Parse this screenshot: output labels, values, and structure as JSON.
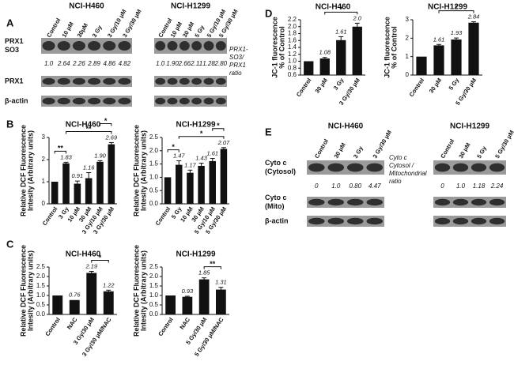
{
  "panel_labels": [
    "A",
    "B",
    "C",
    "D",
    "E"
  ],
  "blot_panels": [
    {
      "rows": [
        [
          "PRX1",
          "SO3"
        ],
        [
          "PRX1"
        ],
        [
          "β-actin"
        ]
      ],
      "ratio_label": [
        "PRX1-",
        "SO3/",
        "PRX1",
        "ratio"
      ],
      "blots": [
        {
          "title": "NCI-H460",
          "lanes": [
            "Control",
            "10 μM",
            "30μM",
            "3 Gy",
            "3 Gy/10 μM",
            "3 Gy/30 μM"
          ],
          "ratios": [
            "1.0",
            "2.64",
            "2.26",
            "2.89",
            "4.86",
            "4.82"
          ]
        },
        {
          "title": "NCI-H1299",
          "lanes": [
            "Control",
            "10 μM",
            "30 μM",
            "5 Gy",
            "5 Gy/10 μM",
            "5 Gy/30 μM"
          ],
          "ratios": [
            "1.0",
            "1.90",
            "2.66",
            "2.11",
            "1.28",
            "2.80"
          ]
        }
      ]
    },
    {
      "rows": [
        [
          "Cyto c",
          "(Cytosol)"
        ],
        [
          "Cyto c",
          "(Mito)"
        ],
        [
          "β-actin"
        ]
      ],
      "ratio_label": [
        "Cyto c",
        "Cytosol /",
        "Mitochondrial",
        "ratio"
      ],
      "blots": [
        {
          "title": "NCI-H460",
          "lanes": [
            "Control",
            "30 μM",
            "3 Gy",
            "3 Gy/30 μM"
          ],
          "ratios": [
            "0",
            "1.0",
            "0.80",
            "4.47"
          ]
        },
        {
          "title": "NCI-H1299",
          "lanes": [
            "Control",
            "30 μM",
            "5 Gy",
            "5 Gy/30 μM"
          ],
          "ratios": [
            "0",
            "1.0",
            "1.18",
            "2.24"
          ]
        }
      ]
    }
  ],
  "chart_data": [
    {
      "type": "bar",
      "title": "NCI-H460",
      "y_label": [
        "Relative DCF Fluorescence",
        "Intesity (Arbitrary units)"
      ],
      "color": "#111111",
      "categories": [
        "Control",
        "3 Gy",
        "10 μM",
        "30 μM",
        "3 Gy/10 μM",
        "3 Gy/30 μM"
      ],
      "values": [
        1,
        1.83,
        0.91,
        1.16,
        1.9,
        2.69
      ],
      "errors": [
        0,
        0.05,
        0.12,
        0.25,
        0.05,
        0.08
      ],
      "value_labels": [
        null,
        "1.83",
        "0.91",
        "1.16",
        "1.90",
        "2.69"
      ],
      "ylim": [
        0,
        3
      ],
      "yticks": [
        0,
        1,
        2,
        3
      ],
      "annotations": [
        {
          "text": "**",
          "between": [
            0,
            1
          ]
        },
        {
          "text": "**",
          "between": [
            1,
            5
          ]
        },
        {
          "text": "*",
          "between": [
            4,
            5
          ]
        }
      ]
    },
    {
      "type": "bar",
      "title": "NCI-H1299",
      "y_label": [
        "Relative DCF Fluorescence",
        "Intesity (Arbitrary units)"
      ],
      "color": "#111111",
      "categories": [
        "Control",
        "5 Gy",
        "10 μM",
        "30 μM",
        "5 Gy/10 μM",
        "5 Gy/30 μM"
      ],
      "values": [
        1,
        1.47,
        1.17,
        1.43,
        1.61,
        2.07
      ],
      "errors": [
        0,
        0.15,
        0.1,
        0.1,
        0.1,
        0.05
      ],
      "value_labels": [
        null,
        "1.47",
        "1.17",
        "1.43",
        "1.61",
        "2.07"
      ],
      "ylim": [
        0,
        2.5
      ],
      "yticks": [
        {
          "value": 0,
          "label": "0.0"
        },
        0.5,
        {
          "value": 1,
          "label": "1.0"
        },
        1.5,
        {
          "value": 2,
          "label": "2.0"
        },
        2.5
      ],
      "annotations": [
        {
          "text": "*",
          "between": [
            0,
            1
          ]
        },
        {
          "text": "*",
          "between": [
            1,
            5
          ]
        },
        {
          "text": "*",
          "between": [
            4,
            5
          ]
        }
      ]
    },
    {
      "type": "bar",
      "title": "NCI-H460",
      "y_label": [
        "Relative DCF Fluorescence",
        "Intesity (Arbitrary units)"
      ],
      "color": "#111111",
      "categories": [
        "Control",
        "NAC",
        "3 Gy/30 μM",
        "3 Gy/30 μM/NAC"
      ],
      "values": [
        1,
        0.76,
        2.19,
        1.22
      ],
      "errors": [
        0,
        0,
        0.08,
        0.06
      ],
      "value_labels": [
        null,
        "0.76",
        "2.19",
        "1.22"
      ],
      "ylim": [
        0,
        2.5
      ],
      "yticks": [
        {
          "value": 0,
          "label": "0.0"
        },
        0.5,
        {
          "value": 1,
          "label": "1.0"
        },
        1.5,
        {
          "value": 2,
          "label": "2.0"
        },
        2.5
      ],
      "annotations": [
        {
          "text": "*",
          "between": [
            2,
            3
          ]
        }
      ]
    },
    {
      "type": "bar",
      "title": "NCI-H1299",
      "y_label": [
        "Relative DCF Fluorescence",
        "Intesity (Arbitrary units)"
      ],
      "color": "#111111",
      "categories": [
        "Control",
        "NAC",
        "5 Gy/30 μM",
        "5 Gy/30 μM/NAC"
      ],
      "values": [
        1,
        0.93,
        1.85,
        1.31
      ],
      "errors": [
        0,
        0.03,
        0.08,
        0.12
      ],
      "value_labels": [
        null,
        "0.93",
        "1.85",
        "1.31"
      ],
      "ylim": [
        0,
        2.5
      ],
      "yticks": [
        {
          "value": 0,
          "label": "0.0"
        },
        0.5,
        {
          "value": 1,
          "label": "1.0"
        },
        1.5,
        {
          "value": 2,
          "label": "2.0"
        },
        2.5
      ],
      "annotations": [
        {
          "text": "**",
          "between": [
            2,
            3
          ]
        }
      ]
    },
    {
      "type": "bar",
      "title": "NCI-H460",
      "y_label": [
        "JC-1 fluorescence",
        "% of Control"
      ],
      "color": "#111111",
      "categories": [
        "Control",
        "30 μM",
        "3 Gy",
        "3 Gy/30 μM"
      ],
      "values": [
        1,
        1.08,
        1.61,
        2.0
      ],
      "errors": [
        0,
        0.03,
        0.1,
        0.1
      ],
      "value_labels": [
        null,
        "1.08",
        "1.61",
        "2.0"
      ],
      "ylim": [
        0.6,
        2.2
      ],
      "yticks": [
        0.6,
        0.8,
        {
          "value": 1,
          "label": "1.0"
        },
        1.2,
        1.4,
        1.6,
        1.8,
        {
          "value": 2,
          "label": "2.0"
        },
        2.2
      ],
      "annotations": [
        {
          "text": "*",
          "between": [
            1,
            3
          ]
        }
      ]
    },
    {
      "type": "bar",
      "title": "NCI-H1299",
      "y_label": [
        "JC-1 fluorescence",
        "% of Control"
      ],
      "color": "#111111",
      "categories": [
        "Control",
        "30 μM",
        "5 Gy",
        "5 Gy/30 μM"
      ],
      "values": [
        1,
        1.61,
        1.93,
        2.84
      ],
      "errors": [
        0,
        0.05,
        0.08,
        0.05
      ],
      "value_labels": [
        null,
        "1.61",
        "1.93",
        "2.84"
      ],
      "ylim": [
        0,
        3
      ],
      "yticks": [
        0,
        1,
        2,
        3
      ],
      "annotations": [
        {
          "text": "*",
          "between": [
            1,
            3
          ]
        }
      ]
    }
  ]
}
